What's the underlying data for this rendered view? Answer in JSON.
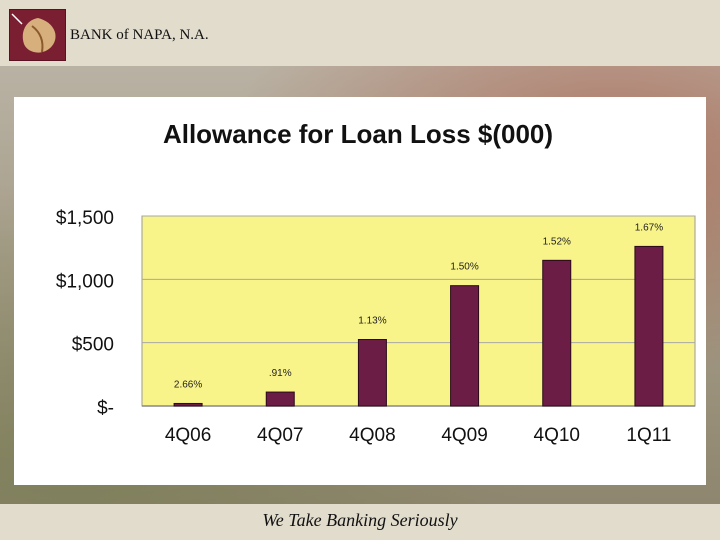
{
  "header": {
    "bank_name": "BANK of NAPA, N.A."
  },
  "footer": {
    "tagline": "We Take Banking Seriously"
  },
  "colors": {
    "plot_bg": "#f9f489",
    "bar": "#6b1d46",
    "header_bg": "#e2dccd"
  },
  "chart_data": {
    "type": "bar",
    "title": "Allowance for Loan Loss $(000)",
    "categories": [
      "4Q06",
      "4Q07",
      "4Q08",
      "4Q09",
      "4Q10",
      "1Q11"
    ],
    "values": [
      20,
      110,
      525,
      950,
      1150,
      1260
    ],
    "data_labels": [
      "2.66%",
      ".91%",
      "1.13%",
      "1.50%",
      "1.52%",
      "1.67%"
    ],
    "ylim": [
      0,
      1500
    ],
    "yticks": [
      0,
      500,
      1000,
      1500
    ],
    "ytick_labels": [
      "$-",
      "$500",
      "$1,000",
      "$1,500"
    ],
    "grid": true
  }
}
